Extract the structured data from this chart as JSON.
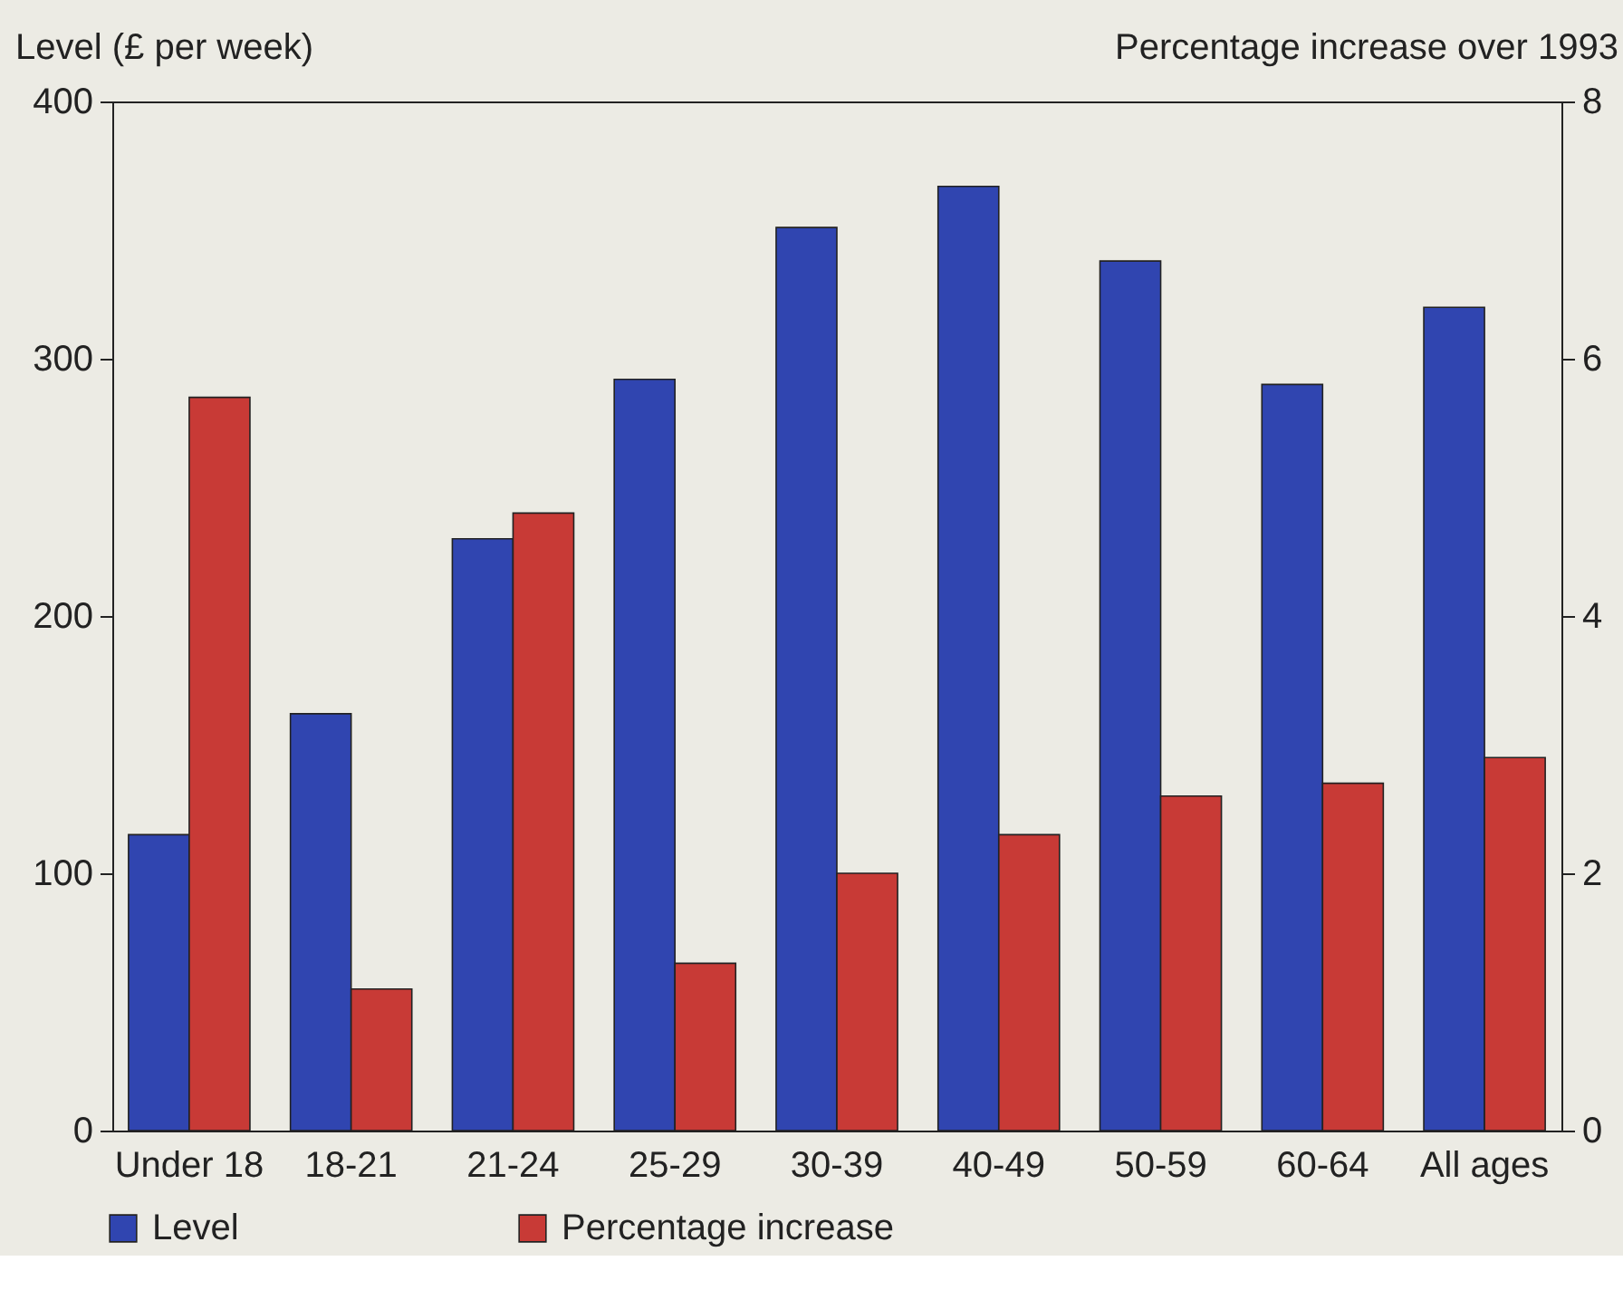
{
  "chart_data": {
    "type": "bar",
    "ylabel": "Level (£ per week)",
    "y2label": "Percentage increase over 1993",
    "categories": [
      "Under 18",
      "18-21",
      "21-24",
      "25-29",
      "30-39",
      "40-49",
      "50-59",
      "60-64",
      "All ages"
    ],
    "series": [
      {
        "name": "Level",
        "color": "#3045b0",
        "values": [
          115,
          162,
          230,
          292,
          351,
          367,
          338,
          290,
          320
        ]
      },
      {
        "name": "Percentage increase",
        "color": "#c83a36",
        "axis": "y2",
        "values": [
          5.7,
          1.1,
          4.8,
          1.3,
          2.0,
          2.3,
          2.6,
          2.7,
          2.9
        ]
      }
    ],
    "ylim": [
      0,
      400
    ],
    "yticks": [
      0,
      100,
      200,
      300,
      400
    ],
    "y2lim": [
      0,
      8
    ],
    "y2ticks": [
      0,
      2,
      4,
      6,
      8
    ],
    "legend": "bottom"
  }
}
